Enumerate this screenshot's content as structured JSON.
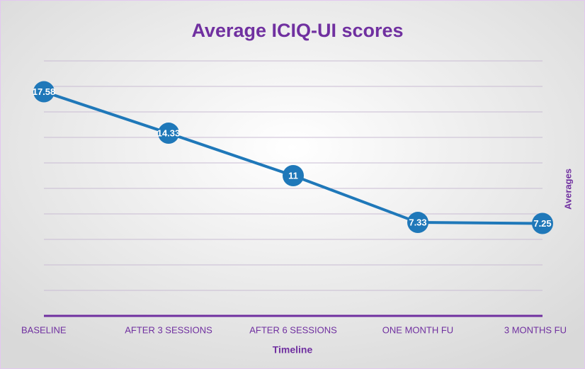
{
  "chart_data": {
    "type": "line",
    "title": "Average ICIQ-UI scores",
    "x_label": "Timeline",
    "y_label": "Averages",
    "categories": [
      "BASELINE",
      "AFTER 3 SESSIONS",
      "AFTER 6 SESSIONS",
      "ONE MONTH FU",
      "3 MONTHS FU"
    ],
    "series": [
      {
        "name": "Averages",
        "color": "#1f78b9",
        "values": [
          17.58,
          14.33,
          11,
          7.33,
          7.25
        ]
      }
    ],
    "ylim": [
      0,
      20
    ],
    "yticks": [
      0,
      2,
      4,
      6,
      8,
      10,
      12,
      14,
      16,
      18,
      20
    ],
    "grid": true
  }
}
